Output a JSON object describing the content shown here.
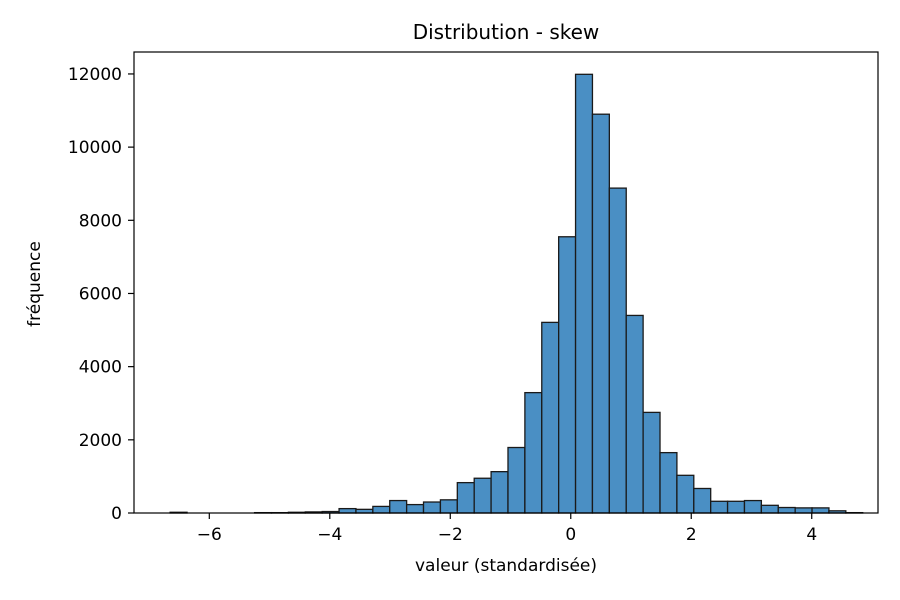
{
  "chart_data": {
    "type": "bar",
    "title": "Distribution - skew",
    "xlabel": "valeur (standardisée)",
    "ylabel": "fréquence",
    "xlim": [
      -7.25,
      5.1
    ],
    "ylim": [
      0,
      12600
    ],
    "xticks": [
      -6,
      -4,
      -2,
      0,
      2,
      4
    ],
    "xtick_labels": [
      "−6",
      "−4",
      "−2",
      "0",
      "2",
      "4"
    ],
    "yticks": [
      0,
      2000,
      4000,
      6000,
      8000,
      10000,
      12000
    ],
    "ytick_labels": [
      "0",
      "2000",
      "4000",
      "6000",
      "8000",
      "10000",
      "12000"
    ],
    "bin_edges_start": -6.65,
    "bin_width": 0.2804,
    "counts": [
      20,
      0,
      0,
      0,
      0,
      10,
      10,
      20,
      30,
      40,
      120,
      100,
      180,
      340,
      230,
      300,
      360,
      830,
      950,
      1130,
      1790,
      3290,
      5210,
      7550,
      11990,
      10900,
      8880,
      5400,
      2750,
      1650,
      1030,
      670,
      320,
      320,
      340,
      210,
      150,
      140,
      140,
      60,
      10
    ],
    "bar_color": "#4a8fc4",
    "edge_color": "#1a1a1a",
    "grid": false
  }
}
